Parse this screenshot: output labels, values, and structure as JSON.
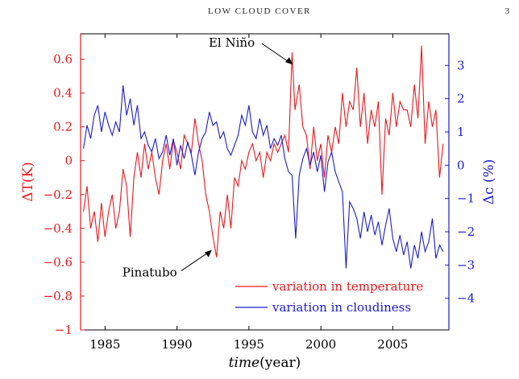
{
  "page": {
    "header": "LOW CLOUD COVER",
    "page_number": "3"
  },
  "chart_data": {
    "type": "line",
    "xlabel": "time(year)",
    "xlabel_italic": "time",
    "xlabel_unit": "(year)",
    "ylabel_left": "ΔT(K)",
    "ylabel_right": "Δc (%)",
    "xlim": [
      1983.3,
      2008.9
    ],
    "ylim_left": [
      -1.0,
      0.75
    ],
    "ylim_right": [
      -4.95,
      3.95
    ],
    "x_ticks": [
      1985,
      1990,
      1995,
      2000,
      2005
    ],
    "y_ticks_left": [
      0.6,
      0.4,
      0.2,
      0,
      -0.2,
      -0.4,
      -0.6,
      -0.8,
      -1
    ],
    "y_tick_labels_left": [
      "0.6",
      "0.4",
      "0.2",
      "0",
      "−0.2",
      "−0.4",
      "−0.6",
      "−0.8",
      "−1"
    ],
    "y_ticks_right": [
      3,
      2,
      1,
      0,
      -1,
      -2,
      -3,
      -4
    ],
    "y_tick_labels_right": [
      "3",
      "2",
      "1",
      "0",
      "−1",
      "−2",
      "−3",
      "−4"
    ],
    "colors": {
      "temperature": "#e8191e",
      "cloudiness": "#1c1ccc",
      "axis_left": "#e8191e",
      "axis_right": "#1c1ccc"
    },
    "legend": {
      "position": "bottom-right"
    },
    "annotations": [
      {
        "text": "El Niño",
        "x": 1998.2,
        "series": "temperature",
        "y": 0.64
      },
      {
        "text": "Pinatubo",
        "x": 1992.7,
        "series": "temperature",
        "y": -0.57
      }
    ],
    "series": [
      {
        "name": "variation in temperature",
        "axis": "left",
        "x": [
          1983.5,
          1983.75,
          1984.0,
          1984.25,
          1984.5,
          1984.75,
          1985.0,
          1985.25,
          1985.5,
          1985.75,
          1986.0,
          1986.25,
          1986.5,
          1986.75,
          1987.0,
          1987.25,
          1987.5,
          1987.75,
          1988.0,
          1988.25,
          1988.5,
          1988.75,
          1989.0,
          1989.25,
          1989.5,
          1989.75,
          1990.0,
          1990.25,
          1990.5,
          1990.75,
          1991.0,
          1991.25,
          1991.5,
          1991.75,
          1992.0,
          1992.25,
          1992.5,
          1992.75,
          1993.0,
          1993.25,
          1993.5,
          1993.75,
          1994.0,
          1994.25,
          1994.5,
          1994.75,
          1995.0,
          1995.25,
          1995.5,
          1995.75,
          1996.0,
          1996.25,
          1996.5,
          1996.75,
          1997.0,
          1997.25,
          1997.5,
          1997.75,
          1998.0,
          1998.2,
          1998.5,
          1998.75,
          1999.0,
          1999.25,
          1999.5,
          1999.75,
          2000.0,
          2000.25,
          2000.5,
          2000.75,
          2001.0,
          2001.25,
          2001.5,
          2001.75,
          2002.0,
          2002.25,
          2002.5,
          2002.75,
          2003.0,
          2003.25,
          2003.5,
          2003.75,
          2004.0,
          2004.25,
          2004.5,
          2004.75,
          2005.0,
          2005.25,
          2005.5,
          2005.75,
          2006.0,
          2006.25,
          2006.5,
          2006.75,
          2007.0,
          2007.25,
          2007.5,
          2007.75,
          2008.0,
          2008.25,
          2008.5
        ],
        "values": [
          -0.3,
          -0.15,
          -0.4,
          -0.3,
          -0.48,
          -0.25,
          -0.45,
          -0.3,
          -0.2,
          -0.4,
          -0.3,
          -0.05,
          -0.15,
          -0.45,
          -0.1,
          0.05,
          -0.1,
          0.1,
          -0.05,
          0.05,
          -0.1,
          -0.2,
          0.0,
          0.1,
          -0.05,
          0.12,
          0.05,
          -0.05,
          0.15,
          0.1,
          0.05,
          0.25,
          0.1,
          0.0,
          -0.2,
          -0.3,
          -0.45,
          -0.57,
          -0.3,
          -0.4,
          -0.2,
          -0.4,
          -0.1,
          -0.15,
          0.0,
          -0.05,
          0.05,
          0.1,
          0.0,
          0.05,
          -0.1,
          0.05,
          0.0,
          0.1,
          0.05,
          0.1,
          0.15,
          0.05,
          0.64,
          0.3,
          0.45,
          0.2,
          0.15,
          -0.05,
          0.2,
          0.0,
          0.1,
          -0.1,
          0.15,
          0.05,
          0.2,
          0.1,
          0.4,
          0.2,
          0.35,
          0.3,
          0.55,
          0.2,
          0.4,
          0.1,
          0.3,
          0.2,
          0.35,
          -0.2,
          0.25,
          0.15,
          0.4,
          0.2,
          0.35,
          0.3,
          0.3,
          0.2,
          0.45,
          0.25,
          0.68,
          0.1,
          0.35,
          0.2,
          0.3,
          -0.1,
          0.1
        ]
      },
      {
        "name": "variation in cloudiness",
        "axis": "right",
        "x": [
          1983.5,
          1983.75,
          1984.0,
          1984.25,
          1984.5,
          1984.75,
          1985.0,
          1985.25,
          1985.5,
          1985.75,
          1986.0,
          1986.25,
          1986.5,
          1986.75,
          1987.0,
          1987.25,
          1987.5,
          1987.75,
          1988.0,
          1988.25,
          1988.5,
          1988.75,
          1989.0,
          1989.25,
          1989.5,
          1989.75,
          1990.0,
          1990.25,
          1990.5,
          1990.75,
          1991.0,
          1991.25,
          1991.5,
          1991.75,
          1992.0,
          1992.25,
          1992.5,
          1992.75,
          1993.0,
          1993.25,
          1993.5,
          1993.75,
          1994.0,
          1994.25,
          1994.5,
          1994.75,
          1995.0,
          1995.25,
          1995.5,
          1995.75,
          1996.0,
          1996.25,
          1996.5,
          1996.75,
          1997.0,
          1997.25,
          1997.5,
          1997.75,
          1998.0,
          1998.25,
          1998.5,
          1998.75,
          1999.0,
          1999.25,
          1999.5,
          1999.75,
          2000.0,
          2000.25,
          2000.5,
          2000.75,
          2001.0,
          2001.25,
          2001.5,
          2001.75,
          2002.0,
          2002.25,
          2002.5,
          2002.75,
          2003.0,
          2003.25,
          2003.5,
          2003.75,
          2004.0,
          2004.25,
          2004.5,
          2004.75,
          2005.0,
          2005.25,
          2005.5,
          2005.75,
          2006.0,
          2006.25,
          2006.5,
          2006.75,
          2007.0,
          2007.25,
          2007.5,
          2007.75,
          2008.0,
          2008.25,
          2008.5
        ],
        "values": [
          0.5,
          1.2,
          0.8,
          1.5,
          1.8,
          1.0,
          1.6,
          1.2,
          0.9,
          1.3,
          1.0,
          2.4,
          1.5,
          2.0,
          1.2,
          1.8,
          0.8,
          1.0,
          0.6,
          0.4,
          0.8,
          0.2,
          0.4,
          0.9,
          0.3,
          0.8,
          0.0,
          0.6,
          0.2,
          0.7,
          0.3,
          -0.3,
          0.4,
          0.8,
          1.0,
          1.6,
          1.2,
          1.3,
          0.8,
          1.0,
          0.5,
          0.3,
          0.6,
          0.9,
          1.5,
          1.2,
          1.8,
          1.0,
          0.8,
          1.4,
          0.9,
          1.2,
          0.5,
          0.8,
          0.6,
          0.9,
          0.2,
          -0.2,
          -0.3,
          -2.2,
          -0.3,
          0.2,
          0.5,
          0.0,
          0.4,
          -0.2,
          0.3,
          -0.8,
          0.1,
          0.4,
          -0.2,
          -0.5,
          -0.8,
          -3.1,
          -1.1,
          -1.3,
          -1.6,
          -2.2,
          -1.4,
          -2.0,
          -1.5,
          -2.1,
          -1.7,
          -2.4,
          -1.8,
          -1.3,
          -2.2,
          -2.6,
          -2.1,
          -2.7,
          -2.3,
          -3.1,
          -2.4,
          -2.8,
          -2.0,
          -2.6,
          -2.3,
          -1.6,
          -2.8,
          -2.4,
          -2.6
        ]
      }
    ]
  }
}
